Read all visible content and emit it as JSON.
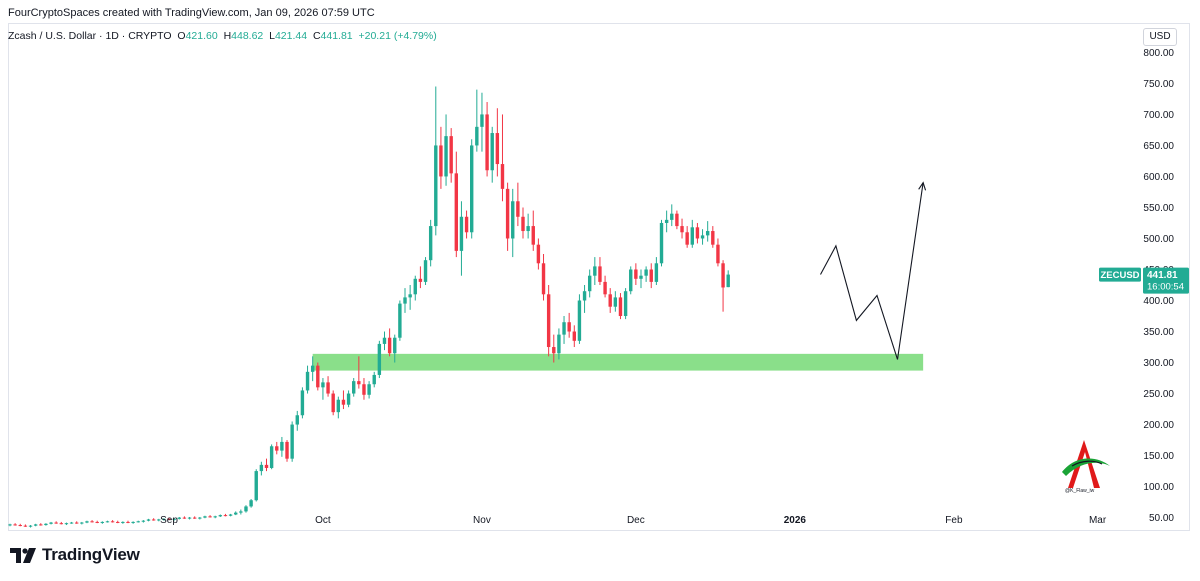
{
  "header": {
    "attribution": "FourCryptoSpaces created with TradingView.com, Jan 09, 2026 07:59 UTC"
  },
  "legend": {
    "symbol": "Zcash / U.S. Dollar · 1D · CRYPTO",
    "open_k": "O",
    "open_v": "421.60",
    "high_k": "H",
    "high_v": "448.62",
    "low_k": "L",
    "low_v": "421.44",
    "close_k": "C",
    "close_v": "441.81",
    "change": "+20.21 (+4.79%)"
  },
  "currency": "USD",
  "brand": {
    "name": "TradingView"
  },
  "watermark": {
    "caption": "@K_Flaw_iw"
  },
  "colors": {
    "up": "#22ab94",
    "down": "#f23645",
    "zone": "#7ddc7d",
    "projection": "#131722",
    "price_tag": "#22ab94"
  },
  "chart_data": {
    "type": "candlestick",
    "ylim": [
      30,
      820
    ],
    "y_ticks": [
      "800.00",
      "750.00",
      "700.00",
      "650.00",
      "600.00",
      "550.00",
      "500.00",
      "450.00",
      "400.00",
      "350.00",
      "300.00",
      "250.00",
      "200.00",
      "150.00",
      "100.00",
      "50.00"
    ],
    "x_ticks": [
      {
        "label": "Sep",
        "day": 31,
        "bold": false
      },
      {
        "label": "Oct",
        "day": 61,
        "bold": false
      },
      {
        "label": "Nov",
        "day": 92,
        "bold": false
      },
      {
        "label": "Dec",
        "day": 122,
        "bold": false
      },
      {
        "label": "2026",
        "day": 153,
        "bold": true
      },
      {
        "label": "Feb",
        "day": 184,
        "bold": false
      },
      {
        "label": "Mar",
        "day": 212,
        "bold": false
      }
    ],
    "x_range_days": [
      0,
      225
    ],
    "last_price": {
      "symbol": "ZECUSD",
      "price": "441.81",
      "countdown": "16:00:54",
      "value": 441.81
    },
    "support_zone": {
      "low": 287,
      "high": 314,
      "day_start": 59,
      "day_end": 178
    },
    "projection_path": [
      [
        158,
        442
      ],
      [
        161,
        488
      ],
      [
        165,
        368
      ],
      [
        169,
        408
      ],
      [
        173,
        305
      ],
      [
        178,
        590
      ]
    ],
    "candles": [
      [
        0,
        38,
        40,
        36,
        39
      ],
      [
        1,
        39,
        41,
        37,
        38
      ],
      [
        2,
        38,
        40,
        36,
        37
      ],
      [
        3,
        37,
        39,
        35,
        36
      ],
      [
        4,
        36,
        38,
        34,
        37
      ],
      [
        5,
        37,
        40,
        36,
        39
      ],
      [
        6,
        39,
        41,
        37,
        38
      ],
      [
        7,
        38,
        41,
        37,
        40
      ],
      [
        8,
        40,
        43,
        39,
        42
      ],
      [
        9,
        42,
        44,
        40,
        41
      ],
      [
        10,
        41,
        43,
        39,
        40
      ],
      [
        11,
        40,
        42,
        38,
        41
      ],
      [
        12,
        41,
        43,
        40,
        42
      ],
      [
        13,
        42,
        44,
        40,
        41
      ],
      [
        14,
        41,
        43,
        39,
        42
      ],
      [
        15,
        42,
        45,
        41,
        44
      ],
      [
        16,
        44,
        46,
        42,
        43
      ],
      [
        17,
        43,
        45,
        41,
        42
      ],
      [
        18,
        42,
        44,
        40,
        43
      ],
      [
        19,
        43,
        45,
        42,
        44
      ],
      [
        20,
        44,
        46,
        42,
        43
      ],
      [
        21,
        43,
        45,
        41,
        42
      ],
      [
        22,
        42,
        44,
        40,
        43
      ],
      [
        23,
        43,
        45,
        41,
        42
      ],
      [
        24,
        42,
        44,
        40,
        43
      ],
      [
        25,
        43,
        45,
        42,
        44
      ],
      [
        26,
        44,
        46,
        42,
        45
      ],
      [
        27,
        45,
        48,
        44,
        47
      ],
      [
        28,
        47,
        49,
        45,
        46
      ],
      [
        29,
        46,
        48,
        44,
        47
      ],
      [
        30,
        47,
        49,
        45,
        48
      ],
      [
        31,
        48,
        50,
        46,
        47
      ],
      [
        32,
        47,
        49,
        45,
        48
      ],
      [
        33,
        48,
        51,
        47,
        50
      ],
      [
        34,
        50,
        52,
        48,
        49
      ],
      [
        35,
        49,
        51,
        47,
        50
      ],
      [
        36,
        50,
        52,
        48,
        49
      ],
      [
        37,
        49,
        51,
        47,
        50
      ],
      [
        38,
        50,
        53,
        49,
        52
      ],
      [
        39,
        52,
        54,
        50,
        51
      ],
      [
        40,
        51,
        53,
        49,
        52
      ],
      [
        41,
        52,
        55,
        51,
        54
      ],
      [
        42,
        54,
        56,
        52,
        53
      ],
      [
        43,
        53,
        56,
        52,
        55
      ],
      [
        44,
        55,
        60,
        54,
        58
      ],
      [
        45,
        58,
        63,
        55,
        60
      ],
      [
        46,
        60,
        70,
        58,
        68
      ],
      [
        47,
        68,
        80,
        66,
        78
      ],
      [
        48,
        78,
        128,
        76,
        125
      ],
      [
        49,
        125,
        140,
        118,
        135
      ],
      [
        50,
        135,
        145,
        125,
        130
      ],
      [
        51,
        130,
        168,
        128,
        165
      ],
      [
        52,
        165,
        172,
        152,
        158
      ],
      [
        53,
        158,
        180,
        148,
        172
      ],
      [
        54,
        172,
        175,
        140,
        145
      ],
      [
        55,
        145,
        205,
        140,
        200
      ],
      [
        56,
        200,
        222,
        190,
        215
      ],
      [
        57,
        215,
        260,
        210,
        255
      ],
      [
        58,
        255,
        295,
        250,
        285
      ],
      [
        59,
        285,
        310,
        270,
        295
      ],
      [
        60,
        295,
        300,
        255,
        260
      ],
      [
        61,
        260,
        275,
        240,
        268
      ],
      [
        62,
        268,
        278,
        245,
        250
      ],
      [
        63,
        250,
        255,
        215,
        220
      ],
      [
        64,
        220,
        245,
        210,
        240
      ],
      [
        65,
        240,
        255,
        225,
        232
      ],
      [
        66,
        232,
        255,
        228,
        250
      ],
      [
        67,
        250,
        275,
        245,
        270
      ],
      [
        68,
        270,
        310,
        258,
        265
      ],
      [
        69,
        265,
        275,
        240,
        248
      ],
      [
        70,
        248,
        270,
        242,
        265
      ],
      [
        71,
        265,
        285,
        260,
        280
      ],
      [
        72,
        280,
        335,
        275,
        330
      ],
      [
        73,
        330,
        350,
        320,
        340
      ],
      [
        74,
        340,
        355,
        310,
        315
      ],
      [
        75,
        315,
        345,
        300,
        340
      ],
      [
        76,
        340,
        400,
        335,
        395
      ],
      [
        77,
        395,
        420,
        380,
        405
      ],
      [
        78,
        405,
        425,
        385,
        410
      ],
      [
        79,
        410,
        440,
        400,
        435
      ],
      [
        80,
        435,
        455,
        420,
        430
      ],
      [
        81,
        430,
        470,
        425,
        465
      ],
      [
        82,
        465,
        530,
        455,
        520
      ],
      [
        83,
        520,
        745,
        505,
        650
      ],
      [
        84,
        650,
        680,
        580,
        600
      ],
      [
        85,
        600,
        700,
        585,
        665
      ],
      [
        86,
        665,
        678,
        590,
        605
      ],
      [
        87,
        605,
        640,
        470,
        480
      ],
      [
        88,
        480,
        560,
        440,
        535
      ],
      [
        89,
        535,
        545,
        500,
        510
      ],
      [
        90,
        510,
        660,
        500,
        650
      ],
      [
        91,
        650,
        740,
        640,
        680
      ],
      [
        92,
        680,
        735,
        640,
        700
      ],
      [
        93,
        700,
        720,
        600,
        610
      ],
      [
        94,
        610,
        680,
        590,
        670
      ],
      [
        95,
        670,
        710,
        600,
        620
      ],
      [
        96,
        620,
        700,
        560,
        580
      ],
      [
        97,
        580,
        590,
        480,
        500
      ],
      [
        98,
        500,
        580,
        470,
        560
      ],
      [
        99,
        560,
        590,
        520,
        535
      ],
      [
        100,
        535,
        550,
        500,
        512
      ],
      [
        101,
        512,
        540,
        500,
        520
      ],
      [
        102,
        520,
        545,
        480,
        490
      ],
      [
        103,
        490,
        500,
        450,
        460
      ],
      [
        104,
        460,
        475,
        400,
        410
      ],
      [
        105,
        410,
        425,
        310,
        325
      ],
      [
        106,
        325,
        345,
        300,
        315
      ],
      [
        107,
        315,
        355,
        305,
        345
      ],
      [
        108,
        345,
        375,
        330,
        365
      ],
      [
        109,
        365,
        380,
        340,
        350
      ],
      [
        110,
        350,
        360,
        325,
        335
      ],
      [
        111,
        335,
        410,
        330,
        400
      ],
      [
        112,
        400,
        425,
        380,
        415
      ],
      [
        113,
        415,
        450,
        405,
        440
      ],
      [
        114,
        440,
        470,
        425,
        455
      ],
      [
        115,
        455,
        470,
        425,
        430
      ],
      [
        116,
        430,
        440,
        405,
        410
      ],
      [
        117,
        410,
        420,
        380,
        390
      ],
      [
        118,
        390,
        415,
        382,
        405
      ],
      [
        119,
        405,
        412,
        370,
        375
      ],
      [
        120,
        375,
        420,
        370,
        415
      ],
      [
        121,
        415,
        455,
        410,
        450
      ],
      [
        122,
        450,
        460,
        425,
        435
      ],
      [
        123,
        435,
        450,
        420,
        440
      ],
      [
        124,
        440,
        455,
        430,
        450
      ],
      [
        125,
        450,
        460,
        420,
        430
      ],
      [
        126,
        430,
        470,
        425,
        460
      ],
      [
        127,
        460,
        530,
        455,
        525
      ],
      [
        128,
        525,
        545,
        510,
        530
      ],
      [
        129,
        530,
        555,
        520,
        540
      ],
      [
        130,
        540,
        545,
        515,
        520
      ],
      [
        131,
        520,
        532,
        500,
        510
      ],
      [
        132,
        510,
        520,
        485,
        490
      ],
      [
        133,
        490,
        530,
        485,
        518
      ],
      [
        134,
        518,
        525,
        492,
        500
      ],
      [
        135,
        500,
        515,
        490,
        505
      ],
      [
        136,
        505,
        528,
        495,
        512
      ],
      [
        137,
        512,
        520,
        485,
        490
      ],
      [
        138,
        490,
        500,
        455,
        460
      ],
      [
        139,
        460,
        465,
        382,
        421
      ],
      [
        140,
        421.6,
        448.62,
        421.44,
        441.81
      ]
    ]
  }
}
